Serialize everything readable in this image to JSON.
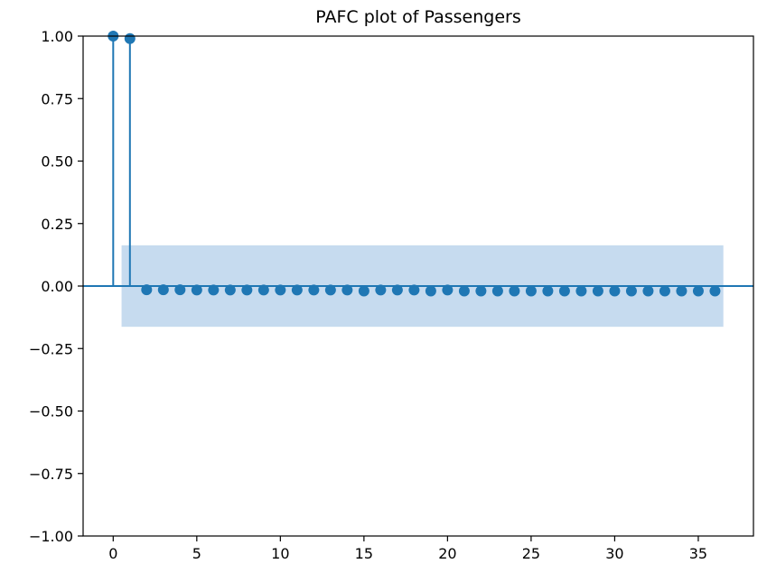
{
  "chart_data": {
    "type": "stem",
    "title": "PAFC plot of Passengers",
    "xlabel": "",
    "ylabel": "",
    "xlim": [
      -1.8,
      38.3
    ],
    "ylim": [
      -1.0,
      1.0
    ],
    "x_ticks": [
      0,
      5,
      10,
      15,
      20,
      25,
      30,
      35
    ],
    "y_ticks": [
      -1.0,
      -0.75,
      -0.5,
      -0.25,
      0.0,
      0.25,
      0.5,
      0.75,
      1.0
    ],
    "x_tick_labels": [
      "0",
      "5",
      "10",
      "15",
      "20",
      "25",
      "30",
      "35"
    ],
    "y_tick_labels": [
      "−1.00",
      "−0.75",
      "−0.50",
      "−0.25",
      "0.00",
      "0.25",
      "0.50",
      "0.75",
      "1.00"
    ],
    "grid": false,
    "confidence_band": {
      "x_range": [
        0.5,
        36.5
      ],
      "lower": -0.163,
      "upper": 0.163
    },
    "series": [
      {
        "lags": [
          0,
          1,
          2,
          3,
          4,
          5,
          6,
          7,
          8,
          9,
          10,
          11,
          12,
          13,
          14,
          15,
          16,
          17,
          18,
          19,
          20,
          21,
          22,
          23,
          24,
          25,
          26,
          27,
          28,
          29,
          30,
          31,
          32,
          33,
          34,
          35,
          36
        ],
        "values": [
          1.0,
          0.99,
          -0.015,
          -0.015,
          -0.015,
          -0.016,
          -0.016,
          -0.016,
          -0.016,
          -0.016,
          -0.016,
          -0.016,
          -0.016,
          -0.016,
          -0.016,
          -0.02,
          -0.016,
          -0.016,
          -0.016,
          -0.02,
          -0.016,
          -0.02,
          -0.02,
          -0.02,
          -0.02,
          -0.02,
          -0.02,
          -0.02,
          -0.02,
          -0.02,
          -0.02,
          -0.02,
          -0.02,
          -0.02,
          -0.02,
          -0.02,
          -0.02
        ]
      }
    ],
    "colors": {
      "stem": "#1f77b4",
      "band": "#c6dbef",
      "axis": "#000000"
    }
  }
}
